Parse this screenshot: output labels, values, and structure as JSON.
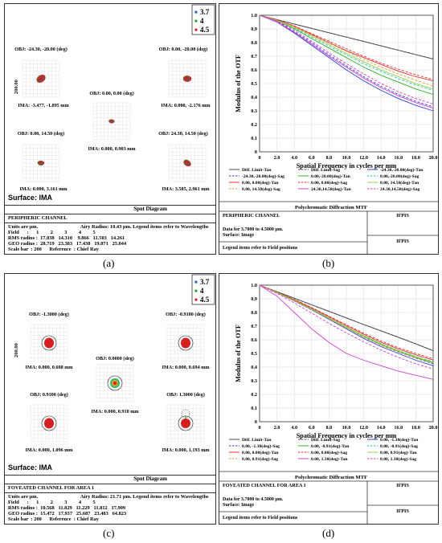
{
  "sublabels": [
    "(a)",
    "(b)",
    "(c)",
    "(d)"
  ],
  "wavelength_legend": [
    "3.7",
    "4",
    "4.5"
  ],
  "wavelength_colors": [
    "#2060c0",
    "#20a020",
    "#d01010"
  ],
  "spot_a": {
    "fields": [
      {
        "obj": "OBJ: -24.30, -20.00 (deg)",
        "ima": "IMA: -3.477, -1.895 mm"
      },
      {
        "obj": "OBJ: 0.00, -20.00 (deg)",
        "ima": "IMA: 0.000, -2.176 mm"
      },
      {
        "obj": "OBJ: 0.00, 0.00 (deg)",
        "ima": "IMA: 0.000, 0.903 mm"
      },
      {
        "obj": "OBJ: 0.00, 14.50 (deg)",
        "ima": "IMA: 0.000, 3.161 mm"
      },
      {
        "obj": "OBJ: 24.30, 14.50 (deg)",
        "ima": "IMA: 3.585, 2.961 mm"
      }
    ],
    "scale_label": "200.00",
    "surface": "Surface: IMA",
    "diagram_title": "Spot Diagram",
    "channel": "PERIPHERIC CHANNEL",
    "units_line": "Units are µm.",
    "airy_line": "Airy Radius: 10.43 µm. Legend items refer to Wavelengths",
    "field_line": "Field      :      1         2         3         4         5",
    "rms_line": "RMS radius :  17.038   14.310    9.866   11.503   14.261",
    "geo_line": "GEO radius :  28.719   23.383   17.438   19.071   25.044",
    "scale_line": "Scale bar  : 200      Reference  : Chief Ray"
  },
  "spot_c": {
    "fields": [
      {
        "obj": "OBJ: -1.3000 (deg)",
        "ima": "IMA: 0.000, 0.608 mm"
      },
      {
        "obj": "OBJ: -0.9100 (deg)",
        "ima": "IMA: 0.000, 0.694 mm"
      },
      {
        "obj": "OBJ: 0.0000 (deg)",
        "ima": "IMA: 0.000, 0.910 mm"
      },
      {
        "obj": "OBJ: 0.9100 (deg)",
        "ima": "IMA: 0.000, 1.096 mm"
      },
      {
        "obj": "OBJ: 1.3000 (deg)",
        "ima": "IMA: 0.000, 1.193 mm"
      }
    ],
    "scale_label": "200.00",
    "surface": "Surface: IMA",
    "diagram_title": "Spot Diagram",
    "channel": "FOVEATED CHANNEL FOR AREA 1",
    "units_line": "Units are µm.",
    "airy_line": "Airy Radius: 21.71 µm. Legend items refer to Wavelengths",
    "field_line": "Field      :      1         2         3         4         5",
    "rms_line": "RMS radius :  10.568   11.829   11.229   11.812   17.909",
    "geo_line": "GEO radius :  15.472   17.937   25.687   23.483   64.823",
    "scale_line": "Scale bar  : 200      Reference  : Chief Ray"
  },
  "chart_data": [
    {
      "type": "line",
      "xlabel": "Spatial Frequency in cycles per mm",
      "ylabel": "Modulus of the OTF",
      "xlim": [
        0,
        20
      ],
      "ylim": [
        0,
        1
      ],
      "xticks": [
        "0",
        "2.0",
        "4.0",
        "6.0",
        "8.0",
        "10.0",
        "12.0",
        "14.0",
        "16.0",
        "18.0",
        "20.0"
      ],
      "yticks": [
        "0",
        "0.1",
        "0.2",
        "0.3",
        "0.4",
        "0.5",
        "0.6",
        "0.7",
        "0.8",
        "0.9",
        "1.0"
      ],
      "grid": true,
      "legend_position": "bottom",
      "x": [
        0,
        2,
        4,
        6,
        8,
        10,
        12,
        14,
        16,
        18,
        20
      ],
      "series": [
        {
          "name": "Diff. Limit-Tan",
          "color": "#444444",
          "dash": false,
          "values": [
            1,
            0.968,
            0.936,
            0.904,
            0.872,
            0.84,
            0.808,
            0.776,
            0.744,
            0.712,
            0.68
          ]
        },
        {
          "name": "Diff. Limit-Sag",
          "color": "#444444",
          "dash": true,
          "values": [
            1,
            0.968,
            0.936,
            0.904,
            0.872,
            0.84,
            0.808,
            0.776,
            0.744,
            0.712,
            0.68
          ]
        },
        {
          "name": "-24.30,-20.00(deg)-Tan",
          "color": "#3040d0",
          "dash": false,
          "values": [
            1,
            0.95,
            0.87,
            0.78,
            0.69,
            0.6,
            0.52,
            0.45,
            0.39,
            0.34,
            0.3
          ]
        },
        {
          "name": "-24.30,-20.00(deg)-Sag",
          "color": "#3040d0",
          "dash": true,
          "values": [
            1,
            0.955,
            0.88,
            0.8,
            0.71,
            0.63,
            0.55,
            0.48,
            0.42,
            0.37,
            0.33
          ]
        },
        {
          "name": "0.00,-20.00(deg)-Tan",
          "color": "#30b030",
          "dash": false,
          "values": [
            1,
            0.96,
            0.9,
            0.83,
            0.76,
            0.69,
            0.62,
            0.56,
            0.51,
            0.46,
            0.42
          ]
        },
        {
          "name": "0.00,-20.00(deg)-Sag",
          "color": "#20c0c0",
          "dash": true,
          "values": [
            1,
            0.962,
            0.905,
            0.84,
            0.775,
            0.71,
            0.645,
            0.59,
            0.535,
            0.49,
            0.45
          ]
        },
        {
          "name": "0.00, 0.00(deg)-Tan",
          "color": "#e03030",
          "dash": false,
          "values": [
            1,
            0.965,
            0.92,
            0.86,
            0.8,
            0.74,
            0.69,
            0.64,
            0.59,
            0.55,
            0.52
          ]
        },
        {
          "name": "0.00, 0.00(deg)-Sag",
          "color": "#e03030",
          "dash": true,
          "values": [
            1,
            0.966,
            0.922,
            0.866,
            0.81,
            0.755,
            0.7,
            0.65,
            0.605,
            0.565,
            0.53
          ]
        },
        {
          "name": "0.00, 14.50(deg)-Tan",
          "color": "#90d040",
          "dash": false,
          "values": [
            1,
            0.962,
            0.91,
            0.85,
            0.785,
            0.72,
            0.66,
            0.6,
            0.55,
            0.5,
            0.46
          ]
        },
        {
          "name": "0.00, 14.50(deg)-Sag",
          "color": "#e0a040",
          "dash": true,
          "values": [
            1,
            0.964,
            0.915,
            0.855,
            0.795,
            0.735,
            0.675,
            0.62,
            0.57,
            0.525,
            0.48
          ]
        },
        {
          "name": "24.30,14.50(deg)-Tan",
          "color": "#d040d0",
          "dash": false,
          "values": [
            1,
            0.952,
            0.875,
            0.79,
            0.7,
            0.62,
            0.54,
            0.47,
            0.41,
            0.36,
            0.32
          ]
        },
        {
          "name": "24.30,14.50(deg)-Sag",
          "color": "#d040d0",
          "dash": true,
          "values": [
            1,
            0.958,
            0.89,
            0.81,
            0.725,
            0.645,
            0.57,
            0.5,
            0.44,
            0.39,
            0.35
          ]
        }
      ],
      "diagram_title": "Polychromatic Diffraction MTF",
      "channel": "PERIPHERIC CHANNEL",
      "data_line": "Data for 3.7000 to 4.5000 µm.",
      "surface_line": "Surface: Image",
      "legend_note": "Legend items refer to Field positions",
      "org": "IFPIS"
    },
    {
      "type": "line",
      "xlabel": "Spatial Frequency in cycles per mm",
      "ylabel": "Modulus of the OTF",
      "xlim": [
        0,
        20
      ],
      "ylim": [
        0,
        1
      ],
      "xticks": [
        "0",
        "2.0",
        "4.0",
        "6.0",
        "8.0",
        "10.0",
        "12.0",
        "14.0",
        "16.0",
        "18.0",
        "20.0"
      ],
      "yticks": [
        "0",
        "0.1",
        "0.2",
        "0.3",
        "0.4",
        "0.5",
        "0.6",
        "0.7",
        "0.8",
        "0.9",
        "1.0"
      ],
      "grid": true,
      "legend_position": "bottom",
      "x": [
        0,
        2,
        4,
        6,
        8,
        10,
        12,
        14,
        16,
        18,
        20
      ],
      "series": [
        {
          "name": "Diff. Limit-Tan",
          "color": "#444444",
          "dash": false,
          "values": [
            1,
            0.952,
            0.904,
            0.856,
            0.808,
            0.76,
            0.712,
            0.665,
            0.618,
            0.57,
            0.52
          ]
        },
        {
          "name": "Diff. Limit-Sag",
          "color": "#444444",
          "dash": true,
          "values": [
            1,
            0.952,
            0.904,
            0.856,
            0.808,
            0.76,
            0.712,
            0.665,
            0.618,
            0.57,
            0.52
          ]
        },
        {
          "name": "0.00, -1.30(deg)-Tan",
          "color": "#3040d0",
          "dash": false,
          "values": [
            1,
            0.945,
            0.885,
            0.82,
            0.75,
            0.68,
            0.61,
            0.55,
            0.5,
            0.45,
            0.41
          ]
        },
        {
          "name": "0.00, -1.30(deg)-Sag",
          "color": "#3040d0",
          "dash": true,
          "values": [
            1,
            0.946,
            0.887,
            0.823,
            0.755,
            0.687,
            0.62,
            0.56,
            0.51,
            0.465,
            0.425
          ]
        },
        {
          "name": "0.00, -0.91(deg)-Tan",
          "color": "#30b030",
          "dash": false,
          "values": [
            1,
            0.946,
            0.888,
            0.825,
            0.758,
            0.69,
            0.625,
            0.565,
            0.515,
            0.47,
            0.43
          ]
        },
        {
          "name": "0.00, -0.91(deg)-Sag",
          "color": "#20c0c0",
          "dash": true,
          "values": [
            1,
            0.947,
            0.89,
            0.828,
            0.762,
            0.695,
            0.63,
            0.572,
            0.522,
            0.478,
            0.44
          ]
        },
        {
          "name": "0.00, 0.00(deg)-Tan",
          "color": "#e03030",
          "dash": false,
          "values": [
            1,
            0.948,
            0.893,
            0.833,
            0.768,
            0.703,
            0.64,
            0.582,
            0.533,
            0.49,
            0.452
          ]
        },
        {
          "name": "0.00, 0.00(deg)-Sag",
          "color": "#e03030",
          "dash": true,
          "values": [
            1,
            0.949,
            0.895,
            0.836,
            0.773,
            0.71,
            0.648,
            0.591,
            0.542,
            0.5,
            0.462
          ]
        },
        {
          "name": "0.00, 0.91(deg)-Tan",
          "color": "#90d040",
          "dash": false,
          "values": [
            1,
            0.947,
            0.889,
            0.826,
            0.76,
            0.693,
            0.628,
            0.569,
            0.519,
            0.475,
            0.436
          ]
        },
        {
          "name": "0.00, 0.91(deg)-Sag",
          "color": "#e0a040",
          "dash": true,
          "values": [
            1,
            0.946,
            0.886,
            0.822,
            0.754,
            0.686,
            0.62,
            0.561,
            0.511,
            0.467,
            0.428
          ]
        },
        {
          "name": "0.00, 1.30(deg)-Tan",
          "color": "#d040d0",
          "dash": false,
          "values": [
            1,
            0.92,
            0.8,
            0.68,
            0.58,
            0.5,
            0.45,
            0.41,
            0.37,
            0.34,
            0.31
          ]
        },
        {
          "name": "0.00, 1.30(deg)-Sag",
          "color": "#d040d0",
          "dash": true,
          "values": [
            1,
            0.94,
            0.87,
            0.795,
            0.72,
            0.65,
            0.585,
            0.525,
            0.47,
            0.425,
            0.385
          ]
        }
      ],
      "diagram_title": "Polychromatic Diffraction MTF",
      "channel": "FOVEATED CHANNEL FOR AREA 1",
      "data_line": "Data for 3.7000 to 4.5000 µm.",
      "surface_line": "Surface: Image",
      "legend_note": "Legend items refer to Field positions",
      "org": "IFPIS"
    }
  ]
}
